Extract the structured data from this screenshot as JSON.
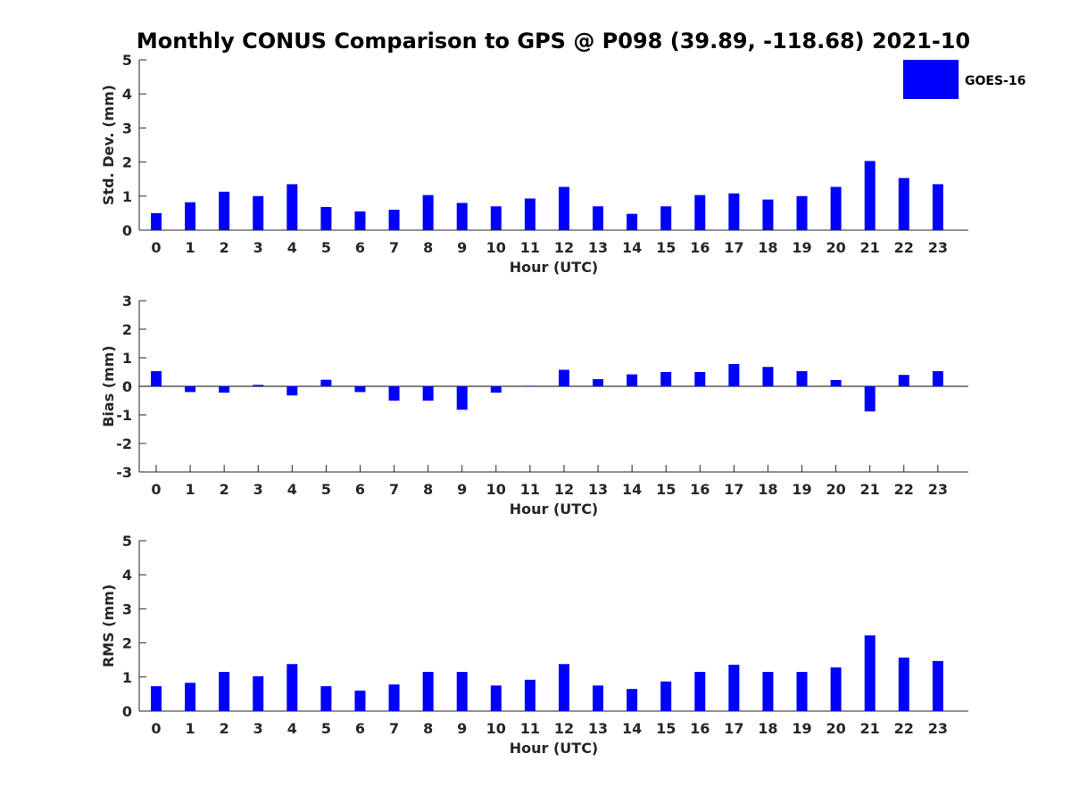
{
  "figure": {
    "title": "Monthly CONUS Comparison to GPS @ P098 (39.89, -118.68) 2021-10",
    "bar_color": "#0000ff",
    "legend": {
      "label": "GOES-16",
      "position": "top-right"
    }
  },
  "chart_data": [
    {
      "type": "bar",
      "title": "Monthly CONUS Comparison to GPS @ P098 (39.89, -118.68) 2021-10",
      "xlabel": "Hour (UTC)",
      "ylabel": "Std. Dev. (mm)",
      "ylim": [
        0,
        5
      ],
      "yticks": [
        0,
        1,
        2,
        3,
        4,
        5
      ],
      "grid": false,
      "categories": [
        "0",
        "1",
        "2",
        "3",
        "4",
        "5",
        "6",
        "7",
        "8",
        "9",
        "10",
        "11",
        "12",
        "13",
        "14",
        "15",
        "16",
        "17",
        "18",
        "19",
        "20",
        "21",
        "22",
        "23"
      ],
      "series": [
        {
          "name": "GOES-16",
          "values": [
            0.5,
            0.82,
            1.13,
            1.0,
            1.35,
            0.68,
            0.55,
            0.6,
            1.03,
            0.8,
            0.7,
            0.93,
            1.27,
            0.7,
            0.48,
            0.7,
            1.03,
            1.08,
            0.9,
            1.0,
            1.27,
            2.03,
            1.53,
            1.35
          ]
        }
      ]
    },
    {
      "type": "bar",
      "title": "",
      "xlabel": "Hour (UTC)",
      "ylabel": "Bias (mm)",
      "ylim": [
        -3,
        3
      ],
      "yticks": [
        -3,
        -2,
        -1,
        0,
        1,
        2,
        3
      ],
      "grid": false,
      "categories": [
        "0",
        "1",
        "2",
        "3",
        "4",
        "5",
        "6",
        "7",
        "8",
        "9",
        "10",
        "11",
        "12",
        "13",
        "14",
        "15",
        "16",
        "17",
        "18",
        "19",
        "20",
        "21",
        "22",
        "23"
      ],
      "series": [
        {
          "name": "GOES-16",
          "values": [
            0.53,
            -0.2,
            -0.22,
            0.05,
            -0.32,
            0.23,
            -0.2,
            -0.5,
            -0.5,
            -0.82,
            -0.22,
            0.02,
            0.58,
            0.25,
            0.42,
            0.5,
            0.5,
            0.78,
            0.68,
            0.53,
            0.22,
            -0.88,
            0.4,
            0.53
          ]
        }
      ]
    },
    {
      "type": "bar",
      "title": "",
      "xlabel": "Hour (UTC)",
      "ylabel": "RMS (mm)",
      "ylim": [
        0,
        5
      ],
      "yticks": [
        0,
        1,
        2,
        3,
        4,
        5
      ],
      "grid": false,
      "categories": [
        "0",
        "1",
        "2",
        "3",
        "4",
        "5",
        "6",
        "7",
        "8",
        "9",
        "10",
        "11",
        "12",
        "13",
        "14",
        "15",
        "16",
        "17",
        "18",
        "19",
        "20",
        "21",
        "22",
        "23"
      ],
      "series": [
        {
          "name": "GOES-16",
          "values": [
            0.73,
            0.83,
            1.15,
            1.02,
            1.38,
            0.73,
            0.6,
            0.78,
            1.15,
            1.15,
            0.75,
            0.92,
            1.38,
            0.75,
            0.65,
            0.87,
            1.15,
            1.36,
            1.15,
            1.15,
            1.28,
            2.22,
            1.57,
            1.47
          ]
        }
      ]
    }
  ]
}
